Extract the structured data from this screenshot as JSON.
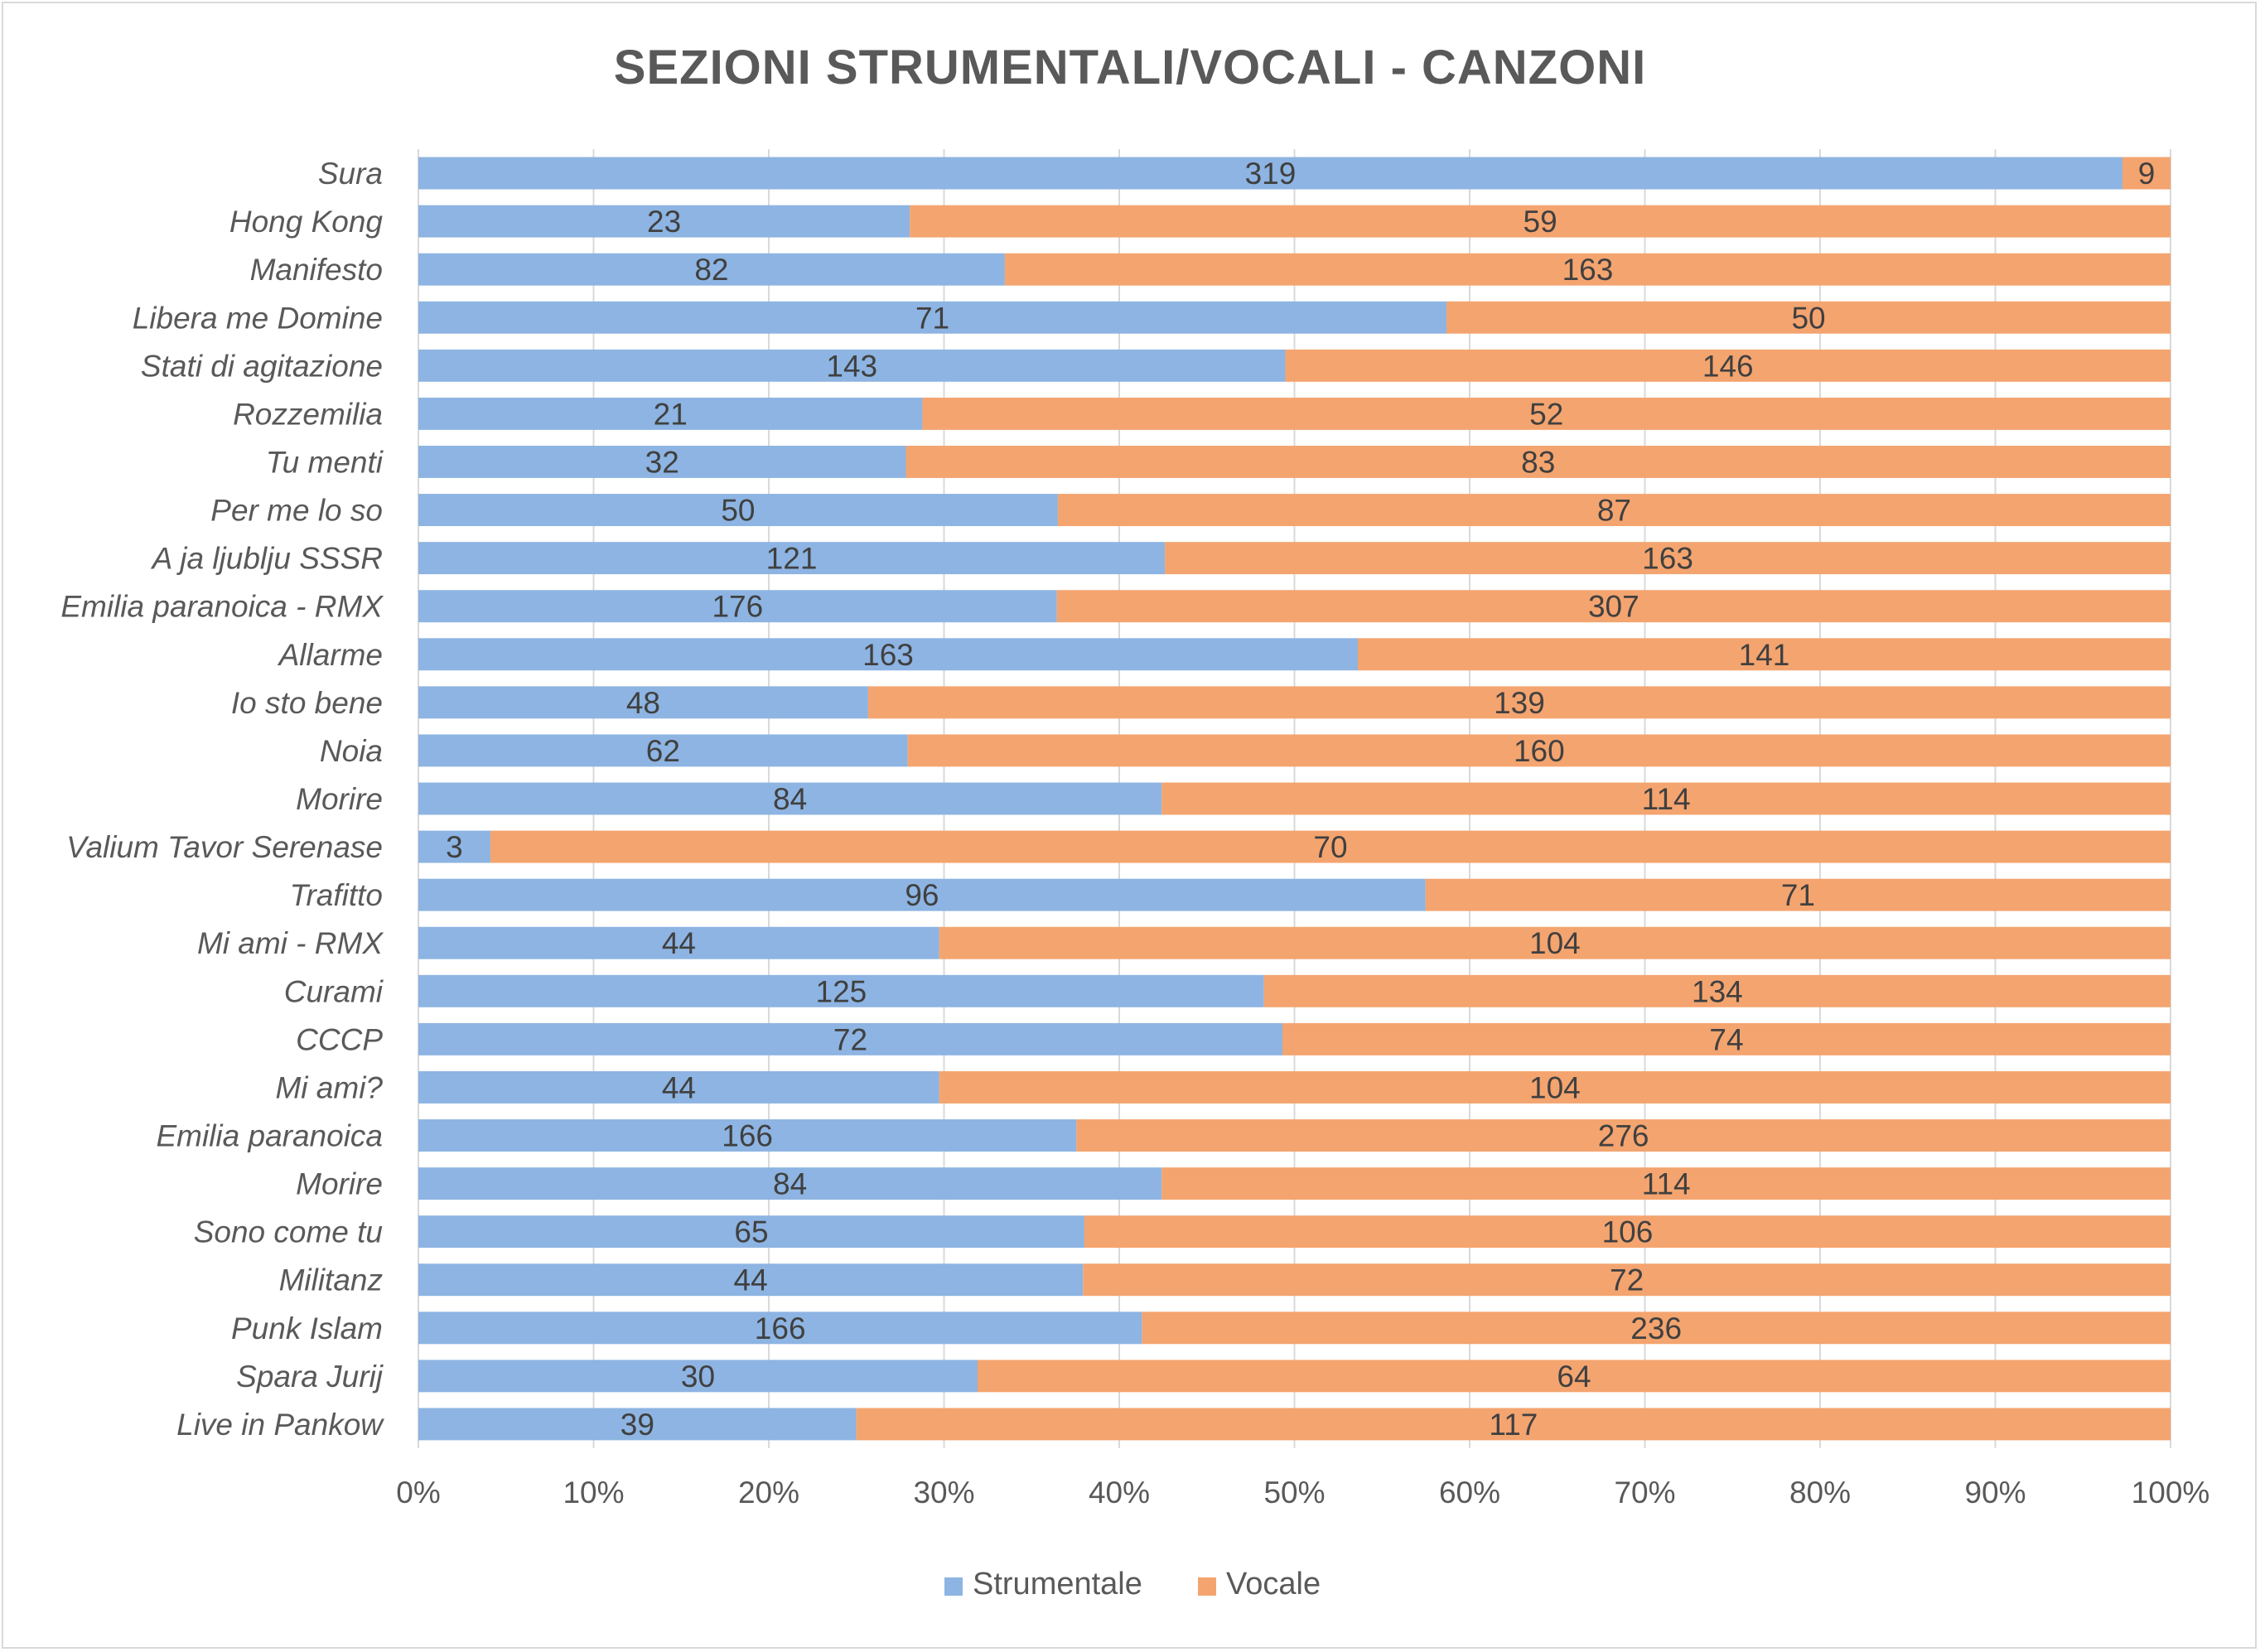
{
  "chart_data": {
    "type": "bar",
    "orientation": "horizontal",
    "stacking": "percent",
    "title": "SEZIONI STRUMENTALI/VOCALI - CANZONI",
    "categories": [
      "Sura",
      "Hong Kong",
      "Manifesto",
      "Libera me Domine",
      "Stati di agitazione",
      "Rozzemilia",
      "Tu menti",
      "Per me lo so",
      "A ja ljublju SSSR",
      "Emilia paranoica - RMX",
      "Allarme",
      "Io sto bene",
      "Noia",
      "Morire",
      "Valium Tavor Serenase",
      "Trafitto",
      "Mi ami - RMX",
      "Curami",
      "CCCP",
      "Mi ami?",
      "Emilia paranoica",
      "Morire",
      "Sono come tu",
      "Militanz",
      "Punk Islam",
      "Spara Jurij",
      "Live in Pankow"
    ],
    "series": [
      {
        "name": "Strumentale",
        "color": "#8db4e2",
        "values": [
          319,
          23,
          82,
          71,
          143,
          21,
          32,
          50,
          121,
          176,
          163,
          48,
          62,
          84,
          3,
          96,
          44,
          125,
          72,
          44,
          166,
          84,
          65,
          44,
          166,
          30,
          39
        ]
      },
      {
        "name": "Vocale",
        "color": "#f4a46f",
        "values": [
          9,
          59,
          163,
          50,
          146,
          52,
          83,
          87,
          163,
          307,
          141,
          139,
          160,
          114,
          70,
          71,
          104,
          134,
          74,
          104,
          276,
          114,
          106,
          72,
          236,
          64,
          117
        ]
      }
    ],
    "x_ticks": [
      "0%",
      "10%",
      "20%",
      "30%",
      "40%",
      "50%",
      "60%",
      "70%",
      "80%",
      "90%",
      "100%"
    ],
    "xlim": [
      0,
      100
    ],
    "grid": true,
    "legend_position": "bottom",
    "data_labels": true
  }
}
